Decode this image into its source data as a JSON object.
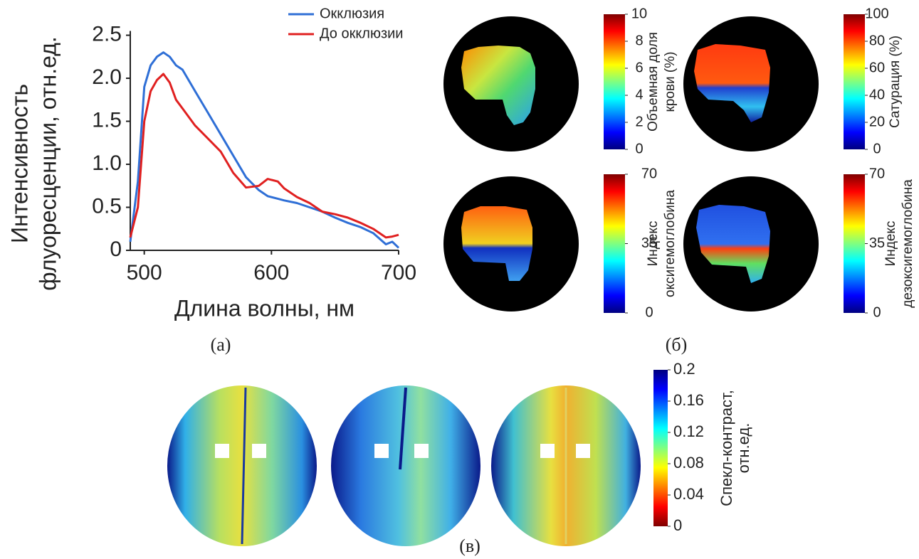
{
  "chart_data": {
    "type": "line",
    "x_label": "Длина волны, нм",
    "y_label": [
      "Интенсивность",
      "флуоресценции, отн.ед."
    ],
    "x": [
      489,
      495,
      500,
      505,
      510,
      515,
      520,
      525,
      530,
      540,
      550,
      560,
      570,
      580,
      590,
      597,
      605,
      610,
      620,
      630,
      640,
      650,
      660,
      670,
      680,
      690,
      695,
      700
    ],
    "series": [
      {
        "name": "Окклюзия",
        "color": "#2f6fd6",
        "values": [
          0.1,
          0.8,
          1.9,
          2.15,
          2.25,
          2.3,
          2.25,
          2.15,
          2.1,
          1.85,
          1.6,
          1.35,
          1.1,
          0.85,
          0.7,
          0.63,
          0.6,
          0.58,
          0.55,
          0.5,
          0.45,
          0.38,
          0.32,
          0.27,
          0.2,
          0.07,
          0.1,
          0.03
        ]
      },
      {
        "name": "До окклюзии",
        "color": "#e02020",
        "values": [
          0.15,
          0.5,
          1.5,
          1.85,
          1.98,
          2.05,
          1.95,
          1.75,
          1.65,
          1.45,
          1.3,
          1.15,
          0.9,
          0.73,
          0.75,
          0.83,
          0.8,
          0.72,
          0.62,
          0.55,
          0.45,
          0.42,
          0.38,
          0.32,
          0.25,
          0.15,
          0.16,
          0.18
        ]
      }
    ],
    "xlim": [
      489,
      700
    ],
    "xticks": [
      500,
      600,
      700
    ],
    "ylim": [
      0,
      2.55
    ],
    "yticks": [
      0,
      0.5,
      {
        "value": 1,
        "label": "1.0"
      },
      1.5,
      {
        "value": 2,
        "label": "2.0"
      },
      2.5
    ],
    "legend": "top-right"
  },
  "panel_labels": [
    "(а)",
    "(б)",
    "(в)"
  ],
  "colorbars": [
    {
      "label": [
        "Объемная доля",
        "крови (%)"
      ],
      "lim": [
        0,
        10
      ],
      "ticks": [
        0,
        2,
        4,
        6,
        8,
        10
      ],
      "reversed": false
    },
    {
      "label": [
        "Сатурация (%)"
      ],
      "lim": [
        0,
        100
      ],
      "ticks": [
        0,
        20,
        40,
        60,
        80,
        100
      ],
      "reversed": false
    },
    {
      "label": [
        "Индекс",
        "оксигемоглобина"
      ],
      "lim": [
        0,
        70
      ],
      "ticks": [
        0,
        35,
        70
      ],
      "reversed": false
    },
    {
      "label": [
        "Индекс",
        "дезоксигемоглобина"
      ],
      "lim": [
        0,
        70
      ],
      "ticks": [
        0,
        35,
        70
      ],
      "reversed": false
    },
    {
      "label": [
        "Спекл-контраст,",
        "отн.ед."
      ],
      "lim": [
        0,
        0.2
      ],
      "ticks": [
        0,
        0.04,
        0.08,
        0.12,
        0.16,
        0.2
      ],
      "reversed": true
    }
  ]
}
